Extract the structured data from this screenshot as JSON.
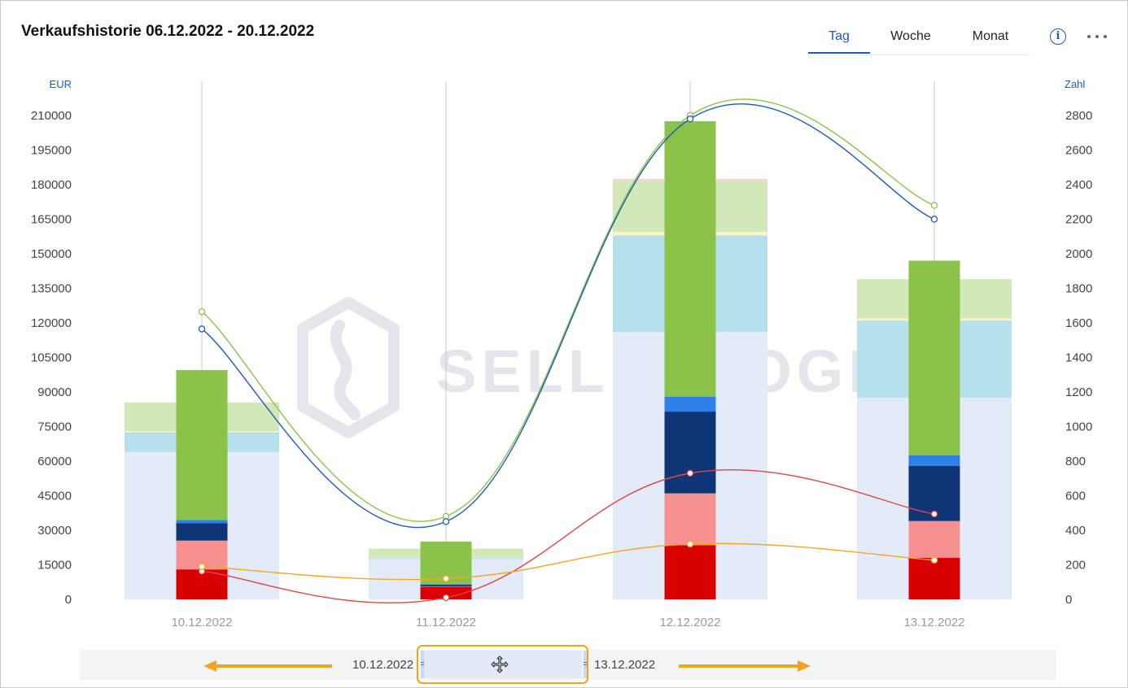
{
  "header": {
    "title": "Verkaufshistorie 06.12.2022 - 20.12.2022",
    "tabs": [
      {
        "label": "Tag",
        "active": true
      },
      {
        "label": "Woche",
        "active": false
      },
      {
        "label": "Monat",
        "active": false
      }
    ],
    "info_icon": "info-icon",
    "more_icon": "more-dots-icon"
  },
  "navigator": {
    "from_label": "10.12.2022",
    "to_label": "13.12.2022",
    "move_icon": "move-icon",
    "left_arrow_icon": "arrow-left-icon",
    "right_arrow_icon": "arrow-right-icon",
    "accent_color": "#f0a51c"
  },
  "watermark": {
    "text": "SELLERLOGIC"
  },
  "chart_data": {
    "type": "bar",
    "categories": [
      "10.12.2022",
      "11.12.2022",
      "12.12.2022",
      "13.12.2022"
    ],
    "y_left": {
      "label": "EUR",
      "min": 0,
      "max": 210000,
      "ticks": [
        0,
        15000,
        30000,
        45000,
        60000,
        75000,
        90000,
        105000,
        120000,
        135000,
        150000,
        165000,
        180000,
        195000,
        210000
      ]
    },
    "y_right": {
      "label": "Zahl",
      "min": 0,
      "max": 2800,
      "ticks": [
        0,
        200,
        400,
        600,
        800,
        1000,
        1200,
        1400,
        1600,
        1800,
        2000,
        2200,
        2400,
        2600,
        2800
      ]
    },
    "wide_bars": {
      "axis": "left",
      "series": [
        {
          "color": "#e3ebf9",
          "values": [
            64000,
            17500,
            116000,
            87500
          ]
        },
        {
          "color": "#b6e0ec",
          "values": [
            8500,
            500,
            42000,
            33500
          ]
        },
        {
          "color": "#fdf3c4",
          "values": [
            500,
            200,
            1500,
            1000
          ]
        },
        {
          "color": "#d3e8b8",
          "values": [
            12500,
            3800,
            22000,
            17000
          ]
        },
        {
          "color": "#f8d3d3",
          "values": [
            0,
            0,
            1000,
            0
          ]
        }
      ]
    },
    "narrow_bars": {
      "axis": "left",
      "series": [
        {
          "color": "#d80000",
          "values": [
            13000,
            5500,
            23500,
            18000
          ]
        },
        {
          "color": "#f7918f",
          "values": [
            12500,
            200,
            22500,
            16000
          ]
        },
        {
          "color": "#103577",
          "values": [
            7500,
            700,
            35500,
            24000
          ]
        },
        {
          "color": "#2f80e9",
          "values": [
            1500,
            200,
            6500,
            4500
          ]
        },
        {
          "color": "#8bc34a",
          "values": [
            65000,
            18500,
            119500,
            84500
          ]
        }
      ]
    },
    "lines": [
      {
        "axis": "right",
        "color": "#8bc34a",
        "values": [
          1665,
          480,
          2800,
          2280
        ]
      },
      {
        "axis": "right",
        "color": "#1c5cb8",
        "values": [
          1565,
          450,
          2780,
          2200
        ]
      },
      {
        "axis": "right",
        "color": "#e04646",
        "values": [
          163,
          10,
          730,
          494
        ]
      },
      {
        "axis": "right",
        "color": "#f5a623",
        "values": [
          190,
          120,
          320,
          227
        ]
      }
    ],
    "grid": false
  }
}
